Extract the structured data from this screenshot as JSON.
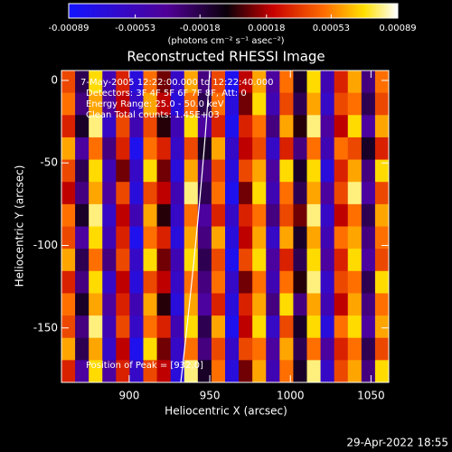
{
  "chart_data": {
    "type": "heatmap",
    "title": "Reconstructed RHESSI Image",
    "x_label": "Heliocentric X (arcsec)",
    "y_label": "Heliocentric Y (arcsec)",
    "colorbar_label": "(photons cm⁻² s⁻¹ asec⁻²)",
    "annotations": [
      "7-May-2005 12:22:00.000 to 12:22:40.000",
      "Detectors: 3F 4F 5F 6F 7F 8F, Att: 0",
      "Energy Range: 25.0 - 50.0 keV",
      "Clean     Total counts: 1.45E+03"
    ],
    "peak_label": "Position of Peak = [932,0]",
    "timestamp": "29-Apr-2022 18:55",
    "xlim": [
      858,
      1061
    ],
    "xticks": [
      900,
      950,
      1000,
      1050
    ],
    "ylim": [
      -183,
      6
    ],
    "yticks": [
      0,
      -50,
      -100,
      -150
    ],
    "zlim": [
      -0.00089,
      0.00089
    ],
    "zticks": [
      -0.00089,
      -0.00053,
      -0.00018,
      0.00018,
      0.00053,
      0.00089
    ],
    "z": [
      [
        0.0004,
        -0.0002,
        0.0007,
        -0.0005,
        0.0003,
        -0.0007,
        0.0005,
        0.0001,
        -0.0006,
        0.0006,
        -0.0003,
        0.0004,
        -0.0008,
        0.0002,
        0.0006,
        -0.0004,
        0.0005,
        -0.0001,
        0.0007,
        -0.0005,
        0.0003,
        0.0006,
        -0.0003,
        0.0005
      ],
      [
        0.0005,
        -0.0003,
        0.0006,
        -0.0004,
        0.0002,
        -0.0006,
        0.0006,
        0.0002,
        -0.0007,
        0.0005,
        -0.0002,
        0.0005,
        -0.0007,
        0.0001,
        0.0007,
        -0.0005,
        0.0004,
        -0.0002,
        0.0006,
        -0.0006,
        0.0004,
        0.0005,
        -0.0002,
        0.0004
      ],
      [
        0.0003,
        -0.0001,
        0.0008,
        -0.0006,
        0.0004,
        -0.0005,
        0.0004,
        0.0,
        -0.0005,
        0.0007,
        -0.0004,
        0.0003,
        -0.0008,
        0.0003,
        0.0005,
        -0.0003,
        0.0006,
        0.0,
        0.0008,
        -0.0004,
        0.0002,
        0.0007,
        -0.0004,
        0.0006
      ],
      [
        0.0006,
        -0.0004,
        0.0005,
        -0.0003,
        0.0003,
        -0.0008,
        0.0005,
        0.0003,
        -0.0006,
        0.0004,
        -0.0001,
        0.0006,
        -0.0006,
        0.0002,
        0.0004,
        -0.0006,
        0.0003,
        -0.0003,
        0.0005,
        -0.0005,
        0.0005,
        0.0004,
        -0.0001,
        0.0003
      ],
      [
        0.0004,
        -0.0002,
        0.0007,
        -0.0005,
        0.0001,
        -0.0006,
        0.0007,
        0.0001,
        -0.0007,
        0.0006,
        -0.0003,
        0.0004,
        -0.0007,
        0.0004,
        0.0006,
        -0.0004,
        0.0007,
        -0.0001,
        0.0007,
        -0.0007,
        0.0003,
        0.0006,
        -0.0003,
        0.0007
      ],
      [
        0.0002,
        -0.0003,
        0.0006,
        -0.0004,
        0.0004,
        -0.0007,
        0.0004,
        0.0002,
        -0.0005,
        0.0008,
        -0.0002,
        0.0005,
        -0.0008,
        0.0001,
        0.0007,
        -0.0005,
        0.0005,
        -0.0002,
        0.0006,
        -0.0004,
        0.0004,
        0.0008,
        -0.0004,
        0.0004
      ],
      [
        0.0005,
        -0.0001,
        0.0008,
        -0.0006,
        0.0002,
        -0.0005,
        0.0006,
        0.0,
        -0.0006,
        0.0005,
        -0.0004,
        0.0003,
        -0.0006,
        0.0003,
        0.0005,
        -0.0003,
        0.0004,
        0.0001,
        0.0008,
        -0.0006,
        0.0002,
        0.0005,
        -0.0002,
        0.0006
      ],
      [
        0.0004,
        -0.0004,
        0.0007,
        -0.0005,
        0.0003,
        -0.0008,
        0.0005,
        0.0003,
        -0.0007,
        0.0006,
        -0.0003,
        0.0006,
        -0.0007,
        0.0002,
        0.0006,
        -0.0006,
        0.0006,
        -0.0001,
        0.0006,
        -0.0005,
        0.0005,
        0.0006,
        -0.0003,
        0.0005
      ],
      [
        0.0006,
        -0.0002,
        0.0005,
        -0.0003,
        0.0004,
        -0.0006,
        0.0007,
        0.0001,
        -0.0005,
        0.0007,
        -0.0002,
        0.0004,
        -0.0008,
        0.0004,
        0.0007,
        -0.0004,
        0.0003,
        -0.0002,
        0.0007,
        -0.0004,
        0.0003,
        0.0007,
        -0.0004,
        0.0004
      ],
      [
        0.0003,
        -0.0003,
        0.0007,
        -0.0006,
        0.0002,
        -0.0007,
        0.0004,
        0.0002,
        -0.0006,
        0.0005,
        -0.0003,
        0.0005,
        -0.0006,
        0.0001,
        0.0005,
        -0.0005,
        0.0005,
        0.0,
        0.0008,
        -0.0006,
        0.0004,
        0.0005,
        -0.0002,
        0.0007
      ],
      [
        0.0005,
        -0.0001,
        0.0006,
        -0.0004,
        0.0003,
        -0.0005,
        0.0006,
        0.0,
        -0.0007,
        0.0006,
        -0.0004,
        0.0003,
        -0.0007,
        0.0003,
        0.0006,
        -0.0003,
        0.0007,
        -0.0003,
        0.0006,
        -0.0005,
        0.0002,
        0.0006,
        -0.0003,
        0.0005
      ],
      [
        0.0004,
        -0.0003,
        0.0008,
        -0.0005,
        0.0004,
        -0.0006,
        0.0005,
        0.0003,
        -0.0005,
        0.0007,
        -0.0002,
        0.0006,
        -0.0008,
        0.0002,
        0.0007,
        -0.0006,
        0.0004,
        -0.0001,
        0.0007,
        -0.0007,
        0.0005,
        0.0007,
        -0.0004,
        0.0006
      ],
      [
        0.0006,
        -0.0002,
        0.0006,
        -0.0006,
        0.0002,
        -0.0008,
        0.0007,
        0.0001,
        -0.0006,
        0.0005,
        -0.0003,
        0.0004,
        -0.0006,
        0.0004,
        0.0005,
        -0.0004,
        0.0006,
        -0.0002,
        0.0005,
        -0.0004,
        0.0003,
        0.0005,
        -0.0002,
        0.0004
      ],
      [
        0.0003,
        -0.0004,
        0.0007,
        -0.0004,
        0.0003,
        -0.0006,
        0.0004,
        0.0002,
        -0.0007,
        0.0008,
        -0.0001,
        0.0005,
        -0.0007,
        0.0001,
        0.0006,
        -0.0005,
        0.0005,
        -0.0001,
        0.0008,
        -0.0006,
        0.0004,
        0.0006,
        -0.0003,
        0.0007
      ]
    ]
  }
}
